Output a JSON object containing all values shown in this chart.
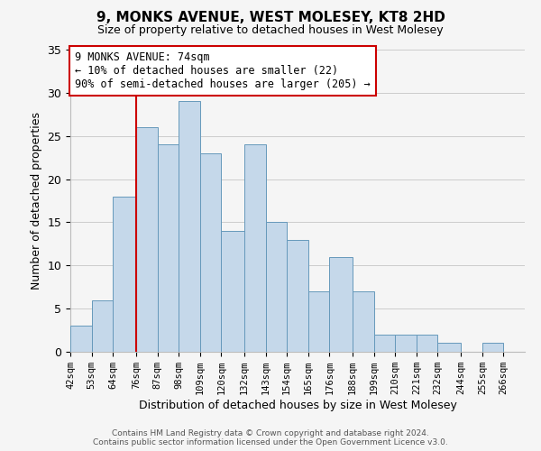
{
  "title": "9, MONKS AVENUE, WEST MOLESEY, KT8 2HD",
  "subtitle": "Size of property relative to detached houses in West Molesey",
  "xlabel": "Distribution of detached houses by size in West Molesey",
  "ylabel": "Number of detached properties",
  "footer_line1": "Contains HM Land Registry data © Crown copyright and database right 2024.",
  "footer_line2": "Contains public sector information licensed under the Open Government Licence v3.0.",
  "bin_labels": [
    "42sqm",
    "53sqm",
    "64sqm",
    "76sqm",
    "87sqm",
    "98sqm",
    "109sqm",
    "120sqm",
    "132sqm",
    "143sqm",
    "154sqm",
    "165sqm",
    "176sqm",
    "188sqm",
    "199sqm",
    "210sqm",
    "221sqm",
    "232sqm",
    "244sqm",
    "255sqm",
    "266sqm"
  ],
  "bin_edges": [
    42,
    53,
    64,
    76,
    87,
    98,
    109,
    120,
    132,
    143,
    154,
    165,
    176,
    188,
    199,
    210,
    221,
    232,
    244,
    255,
    266,
    277
  ],
  "counts": [
    3,
    6,
    18,
    26,
    24,
    29,
    23,
    14,
    24,
    15,
    13,
    7,
    11,
    7,
    2,
    2,
    2,
    1,
    0,
    1,
    0
  ],
  "bar_color": "#c5d8ea",
  "bar_edge_color": "#6699bb",
  "vline_x": 76,
  "vline_color": "#cc0000",
  "annotation_line1": "9 MONKS AVENUE: 74sqm",
  "annotation_line2": "← 10% of detached houses are smaller (22)",
  "annotation_line3": "90% of semi-detached houses are larger (205) →",
  "annotation_box_facecolor": "#ffffff",
  "annotation_box_edgecolor": "#cc0000",
  "ylim": [
    0,
    35
  ],
  "yticks": [
    0,
    5,
    10,
    15,
    20,
    25,
    30,
    35
  ],
  "background_color": "#f5f5f5",
  "grid_color": "#cccccc"
}
